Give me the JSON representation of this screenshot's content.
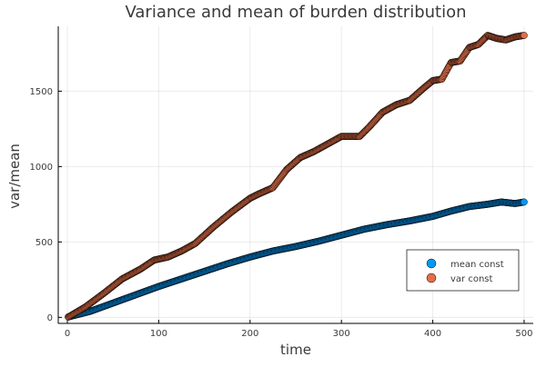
{
  "chart_data": {
    "type": "scatter",
    "title": "Variance and mean of burden distribution",
    "xlabel": "time",
    "ylabel": "var/mean",
    "xlim": [
      -10,
      510
    ],
    "ylim": [
      -40,
      1930
    ],
    "x_ticks": [
      0,
      100,
      200,
      300,
      400,
      500
    ],
    "y_ticks": [
      0,
      500,
      1000,
      1500
    ],
    "grid": true,
    "legend_position": "bottom-right",
    "series": [
      {
        "name": "mean const",
        "color": "#009af9",
        "points": [
          [
            1,
            3
          ],
          [
            25,
            40
          ],
          [
            50,
            95
          ],
          [
            75,
            150
          ],
          [
            100,
            205
          ],
          [
            125,
            255
          ],
          [
            150,
            305
          ],
          [
            175,
            355
          ],
          [
            200,
            400
          ],
          [
            225,
            440
          ],
          [
            250,
            470
          ],
          [
            275,
            505
          ],
          [
            300,
            545
          ],
          [
            325,
            585
          ],
          [
            350,
            615
          ],
          [
            375,
            640
          ],
          [
            400,
            670
          ],
          [
            420,
            705
          ],
          [
            440,
            735
          ],
          [
            460,
            750
          ],
          [
            475,
            765
          ],
          [
            490,
            755
          ],
          [
            500,
            765
          ]
        ]
      },
      {
        "name": "var const",
        "color": "#e26f46",
        "points": [
          [
            1,
            2
          ],
          [
            20,
            70
          ],
          [
            40,
            160
          ],
          [
            60,
            255
          ],
          [
            80,
            320
          ],
          [
            95,
            380
          ],
          [
            110,
            400
          ],
          [
            125,
            440
          ],
          [
            140,
            490
          ],
          [
            160,
            600
          ],
          [
            180,
            700
          ],
          [
            200,
            790
          ],
          [
            210,
            820
          ],
          [
            225,
            860
          ],
          [
            240,
            980
          ],
          [
            255,
            1060
          ],
          [
            270,
            1100
          ],
          [
            285,
            1150
          ],
          [
            300,
            1200
          ],
          [
            320,
            1200
          ],
          [
            330,
            1260
          ],
          [
            345,
            1360
          ],
          [
            360,
            1410
          ],
          [
            375,
            1440
          ],
          [
            390,
            1520
          ],
          [
            400,
            1570
          ],
          [
            410,
            1580
          ],
          [
            420,
            1690
          ],
          [
            430,
            1700
          ],
          [
            440,
            1790
          ],
          [
            450,
            1810
          ],
          [
            460,
            1870
          ],
          [
            470,
            1850
          ],
          [
            480,
            1840
          ],
          [
            490,
            1860
          ],
          [
            500,
            1870
          ]
        ]
      }
    ]
  }
}
